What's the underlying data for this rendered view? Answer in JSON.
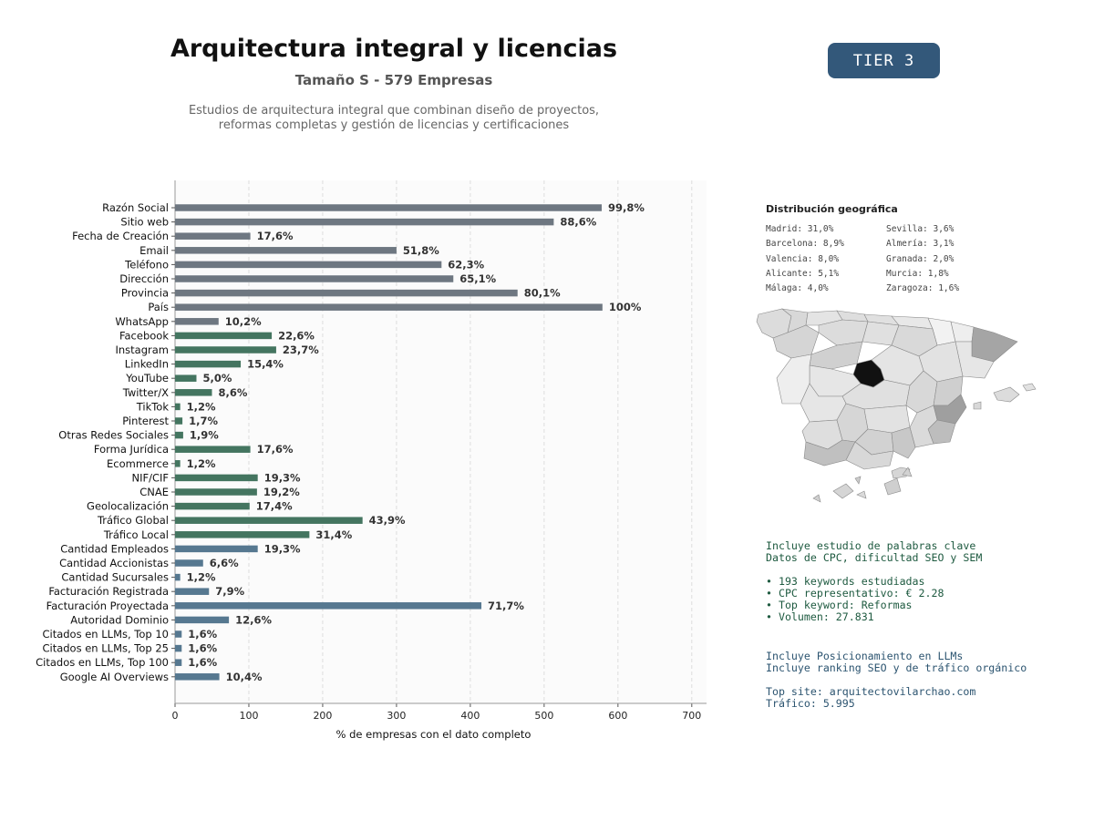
{
  "header": {
    "title": "Arquitectura integral y licencias",
    "subtitle": "Tamaño S - 579 Empresas",
    "description_line1": "Estudios de arquitectura integral que combinan diseño de proyectos,",
    "description_line2": "reformas completas y gestión de licencias y certificaciones",
    "tier": "TIER 3"
  },
  "chart_data": {
    "type": "bar",
    "orientation": "horizontal",
    "xlabel": "% de empresas con el dato completo",
    "xlim": [
      0,
      720
    ],
    "xticks": [
      0,
      100,
      200,
      300,
      400,
      500,
      600,
      700
    ],
    "grid": "vertical dashed",
    "categories": [
      "Razón Social",
      "Sitio web",
      "Fecha de Creación",
      "Email",
      "Teléfono",
      "Dirección",
      "Provincia",
      "País",
      "WhatsApp",
      "Facebook",
      "Instagram",
      "LinkedIn",
      "YouTube",
      "Twitter/X",
      "TikTok",
      "Pinterest",
      "Otras Redes Sociales",
      "Forma Jurídica",
      "Ecommerce",
      "NIF/CIF",
      "CNAE",
      "Geolocalización",
      "Tráfico Global",
      "Tráfico Local",
      "Cantidad Empleados",
      "Cantidad Accionistas",
      "Cantidad Sucursales",
      "Facturación Registrada",
      "Facturación Proyectada",
      "Autoridad Dominio",
      "Citados en LLMs, Top 10",
      "Citados en LLMs, Top 25",
      "Citados en LLMs, Top 100",
      "Google AI Overviews"
    ],
    "values": [
      578,
      513,
      102,
      300,
      361,
      377,
      464,
      579,
      59,
      131,
      137,
      89,
      29,
      50,
      7,
      10,
      11,
      102,
      7,
      112,
      111,
      101,
      254,
      182,
      112,
      38,
      7,
      46,
      415,
      73,
      9,
      9,
      9,
      60
    ],
    "labels": [
      "99,8%",
      "88,6%",
      "17,6%",
      "51,8%",
      "62,3%",
      "65,1%",
      "80,1%",
      "100%",
      "10,2%",
      "22,6%",
      "23,7%",
      "15,4%",
      "5,0%",
      "8,6%",
      "1,2%",
      "1,7%",
      "1,9%",
      "17,6%",
      "1,2%",
      "19,3%",
      "19,2%",
      "17,4%",
      "43,9%",
      "31,4%",
      "19,3%",
      "6,6%",
      "1,2%",
      "7,9%",
      "71,7%",
      "12,6%",
      "1,6%",
      "1,6%",
      "1,6%",
      "10,4%"
    ],
    "groups": [
      "basic",
      "basic",
      "basic",
      "basic",
      "basic",
      "basic",
      "basic",
      "basic",
      "basic",
      "digital",
      "digital",
      "digital",
      "digital",
      "digital",
      "digital",
      "digital",
      "digital",
      "digital",
      "digital",
      "digital",
      "digital",
      "digital",
      "digital",
      "digital",
      "financial",
      "financial",
      "financial",
      "financial",
      "financial",
      "financial",
      "financial",
      "financial",
      "financial",
      "financial"
    ],
    "colors": {
      "basic": "#6e7781",
      "digital": "#447560",
      "financial": "#567890"
    }
  },
  "geo": {
    "title": "Distribución geográfica",
    "items": [
      "Madrid: 31,0%",
      "Sevilla: 3,6%",
      "Barcelona: 8,9%",
      "Almería: 3,1%",
      "Valencia: 8,0%",
      "Granada: 2,0%",
      "Alicante: 5,1%",
      "Murcia: 1,8%",
      "Málaga: 4,0%",
      "Zaragoza: 1,6%"
    ]
  },
  "keywords": {
    "line1": "Incluye estudio de palabras clave",
    "line2": "Datos de CPC, dificultad SEO y SEM",
    "bullets": [
      "• 193 keywords estudiadas",
      "• CPC representativo: € 2.28",
      "• Top keyword: Reformas",
      "• Volumen: 27.831"
    ]
  },
  "llm": {
    "line1": "Incluye Posicionamiento en LLMs",
    "line2": "Incluye ranking SEO y de tráfico orgánico"
  },
  "site": {
    "top_site": "Top site: arquitectovilarchao.com",
    "traffic": "Tráfico: 5.995"
  }
}
